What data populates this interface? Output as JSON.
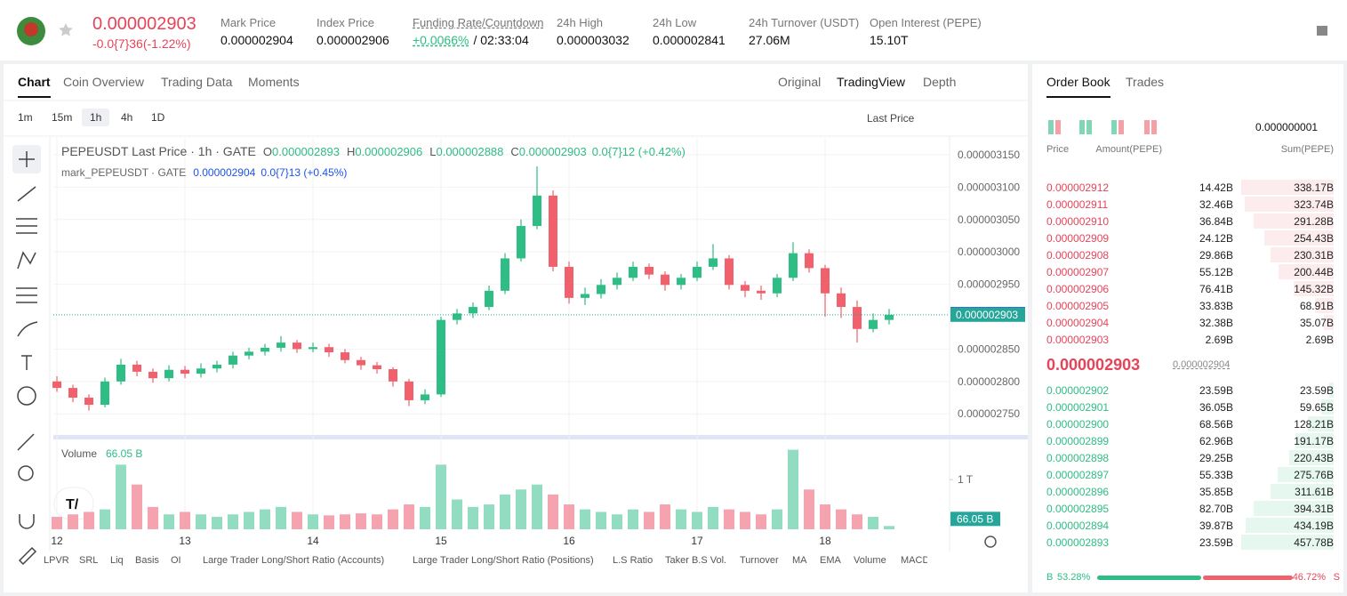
{
  "header": {
    "price": "0.000002903",
    "change": "-0.0{7}36(-1.22%)",
    "stats": [
      {
        "label": "Mark Price",
        "value": "0.000002904"
      },
      {
        "label": "Index Price",
        "value": "0.000002906"
      },
      {
        "label": "Funding Rate/Countdown",
        "value": "+0.0066%",
        "extra": "/ 02:33:04"
      },
      {
        "label": "24h High",
        "value": "0.000003032"
      },
      {
        "label": "24h Low",
        "value": "0.000002841"
      },
      {
        "label": "24h Turnover (USDT)",
        "value": "27.06M"
      },
      {
        "label": "Open Interest (PEPE)",
        "value": "15.10T"
      }
    ]
  },
  "tabs": [
    "Chart",
    "Coin Overview",
    "Trading Data",
    "Moments"
  ],
  "views": [
    "Original",
    "TradingView",
    "Depth"
  ],
  "intervals": [
    "1m",
    "15m",
    "1h",
    "4h",
    "1D"
  ],
  "price_type": "Last Price",
  "legend": {
    "title": "PEPEUSDT Last Price · 1h · GATE",
    "ohlc": [
      {
        "k": "O",
        "v": "0.000002893"
      },
      {
        "k": "H",
        "v": "0.000002906"
      },
      {
        "k": "L",
        "v": "0.000002888"
      },
      {
        "k": "C",
        "v": "0.000002903"
      }
    ],
    "change": "0.0{7}12 (+0.42%)",
    "mark_name": "mark_PEPEUSDT · GATE",
    "mark_value": "0.000002904",
    "mark_change": "0.0{7}13 (+0.45%)"
  },
  "chart_data": {
    "type": "candlestick",
    "x": [
      0,
      3,
      6,
      9,
      12,
      15,
      18,
      21,
      24,
      27,
      30,
      33,
      36,
      39,
      42,
      45,
      48,
      51,
      54,
      57,
      60,
      63,
      66,
      69,
      72,
      75,
      78,
      81,
      84,
      87,
      90,
      93,
      96,
      99,
      102,
      105,
      108,
      111,
      114,
      117,
      120,
      123,
      126,
      129,
      132,
      135,
      138,
      141,
      144,
      147,
      150,
      153,
      156
    ],
    "xlim": [
      -0.67,
      167.33
    ],
    "xticks": [
      {
        "value": 0,
        "label": "12"
      },
      {
        "value": 24,
        "label": "13"
      },
      {
        "value": 48,
        "label": "14"
      },
      {
        "value": 72,
        "label": "15"
      },
      {
        "value": 96,
        "label": "16"
      },
      {
        "value": 120,
        "label": "17"
      },
      {
        "value": 144,
        "label": "18"
      }
    ],
    "ylim": [
      2.716e-06,
      3.176e-06
    ],
    "yticks": [
      {
        "value": 2.75e-06,
        "label": "0.000002750"
      },
      {
        "value": 2.8e-06,
        "label": "0.000002800"
      },
      {
        "value": 2.85e-06,
        "label": "0.000002850"
      },
      {
        "value": 2.95e-06,
        "label": "0.000002950"
      },
      {
        "value": 3e-06,
        "label": "0.000003000"
      },
      {
        "value": 3.05e-06,
        "label": "0.000003050"
      },
      {
        "value": 3.1e-06,
        "label": "0.000003100"
      },
      {
        "value": 3.15e-06,
        "label": "0.000003150"
      }
    ],
    "grid": true,
    "up_color": "#2ebd85",
    "down_color": "#f0616d",
    "open": [
      2.8e-06,
      2.79e-06,
      2.775e-06,
      2.764e-06,
      2.8e-06,
      2.826e-06,
      2.815e-06,
      2.805e-06,
      2.818e-06,
      2.812e-06,
      2.82e-06,
      2.826e-06,
      2.84e-06,
      2.846e-06,
      2.852e-06,
      2.86e-06,
      2.85e-06,
      2.853e-06,
      2.845e-06,
      2.833e-06,
      2.825e-06,
      2.819e-06,
      2.8e-06,
      2.771e-06,
      2.78e-06,
      2.895e-06,
      2.905e-06,
      2.915e-06,
      2.94e-06,
      2.99e-06,
      3.04e-06,
      3.087e-06,
      2.977e-06,
      2.929e-06,
      2.935e-06,
      2.949e-06,
      2.96e-06,
      2.977e-06,
      2.965e-06,
      2.949e-06,
      2.96e-06,
      2.977e-06,
      2.99e-06,
      2.949e-06,
      2.94e-06,
      2.936e-06,
      2.96e-06,
      2.998e-06,
      2.975e-06,
      2.936e-06,
      2.915e-06,
      2.881e-06,
      2.895e-06
    ],
    "high": [
      2.808e-06,
      2.795e-06,
      2.78e-06,
      2.806e-06,
      2.835e-06,
      2.832e-06,
      2.82e-06,
      2.825e-06,
      2.824e-06,
      2.828e-06,
      2.832e-06,
      2.846e-06,
      2.852e-06,
      2.858e-06,
      2.87e-06,
      2.864e-06,
      2.86e-06,
      2.858e-06,
      2.85e-06,
      2.838e-06,
      2.83e-06,
      2.822e-06,
      2.804e-06,
      2.788e-06,
      2.9e-06,
      2.912e-06,
      2.922e-06,
      2.948e-06,
      2.998e-06,
      3.05e-06,
      3.132e-06,
      3.095e-06,
      2.985e-06,
      2.945e-06,
      2.958e-06,
      2.968e-06,
      2.985e-06,
      2.982e-06,
      2.97e-06,
      2.966e-06,
      2.985e-06,
      3.012e-06,
      2.995e-06,
      2.955e-06,
      2.948e-06,
      2.966e-06,
      3.015e-06,
      3.004e-06,
      2.98e-06,
      2.945e-06,
      2.925e-06,
      2.905e-06,
      2.912e-06
    ],
    "low": [
      2.784e-06,
      2.768e-06,
      2.755e-06,
      2.76e-06,
      2.795e-06,
      2.808e-06,
      2.798e-06,
      2.8e-06,
      2.805e-06,
      2.806e-06,
      2.814e-06,
      2.82e-06,
      2.834e-06,
      2.84e-06,
      2.846e-06,
      2.844e-06,
      2.845e-06,
      2.838e-06,
      2.828e-06,
      2.818e-06,
      2.812e-06,
      2.792e-06,
      2.762e-06,
      2.765e-06,
      2.776e-06,
      2.888e-06,
      2.898e-06,
      2.91e-06,
      2.935e-06,
      2.985e-06,
      3.035e-06,
      2.97e-06,
      2.92e-06,
      2.918e-06,
      2.928e-06,
      2.942e-06,
      2.955e-06,
      2.958e-06,
      2.94e-06,
      2.942e-06,
      2.955e-06,
      2.972e-06,
      2.942e-06,
      2.93e-06,
      2.926e-06,
      2.93e-06,
      2.955e-06,
      2.968e-06,
      2.9e-06,
      2.898e-06,
      2.86e-06,
      2.876e-06,
      2.888e-06
    ],
    "close": [
      2.79e-06,
      2.775e-06,
      2.764e-06,
      2.8e-06,
      2.826e-06,
      2.815e-06,
      2.805e-06,
      2.818e-06,
      2.812e-06,
      2.82e-06,
      2.826e-06,
      2.84e-06,
      2.846e-06,
      2.852e-06,
      2.86e-06,
      2.85e-06,
      2.853e-06,
      2.845e-06,
      2.833e-06,
      2.825e-06,
      2.819e-06,
      2.8e-06,
      2.771e-06,
      2.78e-06,
      2.895e-06,
      2.905e-06,
      2.915e-06,
      2.94e-06,
      2.99e-06,
      3.04e-06,
      3.087e-06,
      2.977e-06,
      2.929e-06,
      2.935e-06,
      2.949e-06,
      2.96e-06,
      2.977e-06,
      2.965e-06,
      2.949e-06,
      2.96e-06,
      2.977e-06,
      2.99e-06,
      2.949e-06,
      2.94e-06,
      2.936e-06,
      2.96e-06,
      2.998e-06,
      2.975e-06,
      2.936e-06,
      2.915e-06,
      2.881e-06,
      2.895e-06,
      2.903e-06
    ],
    "mark_tag": {
      "value": 2.904e-06,
      "label": "0.000002904",
      "color": "#1e53e5"
    },
    "last_tag": {
      "value": 2.903e-06,
      "label": "0.000002903",
      "color": "#26a69a"
    },
    "volume": {
      "label": "Volume",
      "ylim": [
        0,
        1700
      ],
      "yticks": [
        {
          "value": 1000,
          "label": "1 T"
        }
      ],
      "up_color": "#92dcc1",
      "down_color": "#f4a3af",
      "values": [
        250,
        300,
        350,
        400,
        1300,
        900,
        450,
        300,
        350,
        300,
        250,
        300,
        350,
        400,
        450,
        350,
        300,
        280,
        300,
        320,
        300,
        400,
        500,
        450,
        1300,
        600,
        450,
        500,
        700,
        800,
        900,
        700,
        500,
        400,
        350,
        300,
        400,
        350,
        500,
        400,
        350,
        450,
        400,
        350,
        300,
        400,
        1600,
        800,
        500,
        400,
        300,
        250,
        66.05
      ],
      "current": 66.05,
      "current_label": "66.05 B"
    }
  },
  "order_book": {
    "tabs": [
      "Order Book",
      "Trades"
    ],
    "precision": "0.000000001",
    "headers": [
      "Price",
      "Amount(PEPE)",
      "Sum(PEPE)"
    ],
    "asks": [
      [
        "0.000002912",
        "14.42B",
        "338.17B"
      ],
      [
        "0.000002911",
        "32.46B",
        "323.74B"
      ],
      [
        "0.000002910",
        "36.84B",
        "291.28B"
      ],
      [
        "0.000002909",
        "24.12B",
        "254.43B"
      ],
      [
        "0.000002908",
        "29.86B",
        "230.31B"
      ],
      [
        "0.000002907",
        "55.12B",
        "200.44B"
      ],
      [
        "0.000002906",
        "76.41B",
        "145.32B"
      ],
      [
        "0.000002905",
        "33.83B",
        "68.91B"
      ],
      [
        "0.000002904",
        "32.38B",
        "35.07B"
      ],
      [
        "0.000002903",
        "2.69B",
        "2.69B"
      ]
    ],
    "last": {
      "price": "0.000002903",
      "mark": "0.000002904"
    },
    "bids": [
      [
        "0.000002902",
        "23.59B",
        "23.59B"
      ],
      [
        "0.000002901",
        "36.05B",
        "59.65B"
      ],
      [
        "0.000002900",
        "68.56B",
        "128.21B"
      ],
      [
        "0.000002899",
        "62.96B",
        "191.17B"
      ],
      [
        "0.000002898",
        "29.25B",
        "220.43B"
      ],
      [
        "0.000002897",
        "55.33B",
        "275.76B"
      ],
      [
        "0.000002896",
        "35.85B",
        "311.61B"
      ],
      [
        "0.000002895",
        "82.70B",
        "394.31B"
      ],
      [
        "0.000002894",
        "39.87B",
        "434.19B"
      ],
      [
        "0.000002893",
        "23.59B",
        "457.78B"
      ]
    ],
    "buy": {
      "label": "B",
      "pct": "53.28%"
    },
    "sell": {
      "label": "S",
      "pct": "46.72%"
    }
  },
  "indicators": [
    "LPVR",
    "SRL",
    "Liq",
    "Basis",
    "OI",
    "Large Trader Long/Short Ratio (Accounts)",
    "Large Trader Long/Short Ratio (Positions)",
    "L.S Ratio",
    "Taker B.S Vol.",
    "Turnover",
    "MA",
    "EMA",
    "Volume",
    "MACD"
  ]
}
